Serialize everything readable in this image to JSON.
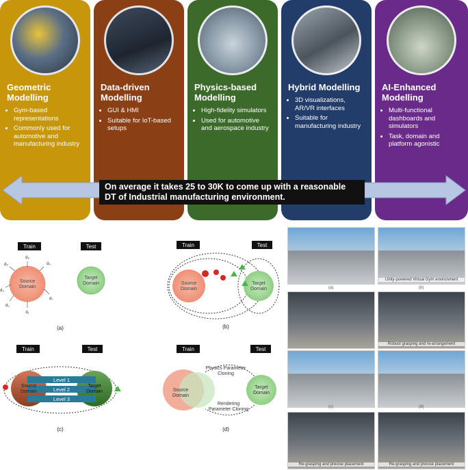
{
  "cards": [
    {
      "title": "Geometric Modelling",
      "bullets": [
        "Gym-based representations",
        "Commonly used for automotive and manufacturing industry"
      ],
      "color": "#c8960a",
      "image": "robot-arm-scene"
    },
    {
      "title": "Data-driven Modelling",
      "bullets": [
        "GUI & HMI",
        "Suitable for IoT-based setups"
      ],
      "color": "#8a3f14",
      "image": "dashboard-screen"
    },
    {
      "title": "Physics-based Modelling",
      "bullets": [
        "High-fidelity simulators",
        "Used for automotive and aerospace industry"
      ],
      "color": "#3b6a2b",
      "image": "physics-sim-scene"
    },
    {
      "title": "Hybrid Modelling",
      "bullets": [
        "3D visualizations, AR/VR interfaces",
        "Suitable for manufacturing industry"
      ],
      "color": "#233d6b",
      "image": "factory-3d-scene"
    },
    {
      "title": "AI-Enhanced Modelling",
      "bullets": [
        "Multi-functional dashboards and simulators",
        "Task, domain and platform agonistic"
      ],
      "color": "#6a2a8a",
      "image": "warehouse-ai-scene"
    }
  ],
  "banner": "On average it takes 25 to 30K to come up with a reasonable DT of Industrial manufacturing environment.",
  "diagrams": {
    "train": "Train",
    "test": "Test",
    "source": [
      "Source",
      "Domain"
    ],
    "target": [
      "Target",
      "Domain"
    ],
    "d_labels": [
      "d₁",
      "d₂",
      "d₃",
      "d₄",
      "d₅",
      "d₆",
      "d₇"
    ],
    "levels": [
      "Level 1",
      "Level 2",
      "Level 3"
    ],
    "physics": [
      "Physics Parameter",
      "Cloning"
    ],
    "rendering": [
      "Rendering",
      "Parameter Cloning"
    ],
    "captions": [
      "(a)",
      "(b)",
      "(c)",
      "(d)"
    ]
  },
  "photos": {
    "captions": [
      "(a)",
      "(b)",
      "(c)",
      "(d)"
    ],
    "overlays": [
      "Unity-powered Virtual Gym environment",
      "Robust grasping and re-arrangement",
      "Re-grasping and precise placement",
      "Re-grasping and precise placement"
    ]
  }
}
